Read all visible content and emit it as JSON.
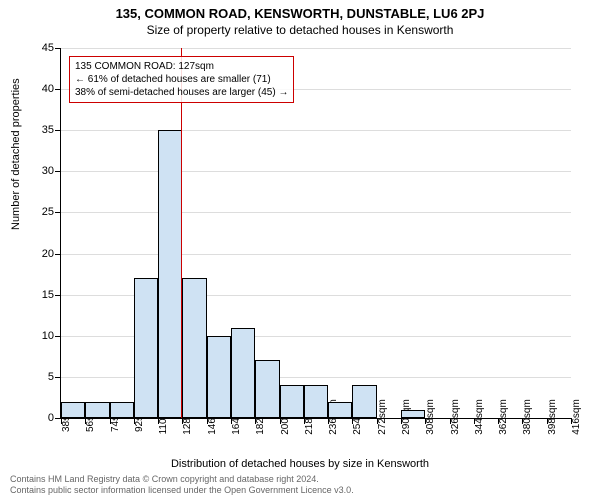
{
  "titles": {
    "main": "135, COMMON ROAD, KENSWORTH, DUNSTABLE, LU6 2PJ",
    "sub": "Size of property relative to detached houses in Kensworth"
  },
  "axes": {
    "y_label": "Number of detached properties",
    "x_label": "Distribution of detached houses by size in Kensworth",
    "y_min": 0,
    "y_max": 45,
    "y_step": 5,
    "x_unit": "sqm"
  },
  "bars": {
    "bin_start": 38,
    "bin_width": 18,
    "count": 21,
    "values": [
      2,
      2,
      2,
      17,
      35,
      17,
      10,
      11,
      7,
      4,
      4,
      2,
      4,
      0,
      1,
      0,
      0,
      0,
      0,
      0,
      0
    ],
    "fill_color": "#cfe2f3",
    "border_color": "#000000"
  },
  "reference": {
    "value": 127,
    "color": "#cc0000"
  },
  "annotation": {
    "lines": [
      "135 COMMON ROAD: 127sqm",
      "← 61% of detached houses are smaller (71)",
      "38% of semi-detached houses are larger (45) →"
    ],
    "border_color": "#cc0000"
  },
  "footer": {
    "line1": "Contains HM Land Registry data © Crown copyright and database right 2024.",
    "line2": "Contains public sector information licensed under the Open Government Licence v3.0."
  },
  "style": {
    "background": "#ffffff",
    "grid_color": "#dddddd",
    "axis_color": "#000000",
    "title_fontsize": 13,
    "sub_fontsize": 12,
    "tick_fontsize": 11
  }
}
